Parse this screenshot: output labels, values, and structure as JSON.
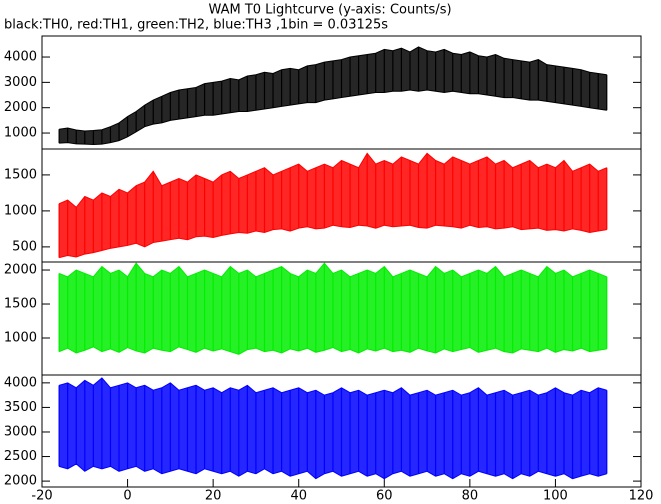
{
  "title": "WAM T0 Lightcurve (y-axis: Counts/s)",
  "subtitle": "black:TH0, red:TH1, green:TH2, blue:TH3 ,1bin = 0.03125s",
  "chart_data": [
    {
      "type": "band",
      "x": [
        -16,
        -14,
        -12,
        -10,
        -8,
        -6,
        -4,
        -2,
        0,
        2,
        4,
        6,
        8,
        10,
        12,
        14,
        16,
        18,
        20,
        22,
        24,
        26,
        28,
        30,
        32,
        34,
        36,
        38,
        40,
        42,
        44,
        46,
        48,
        50,
        52,
        54,
        56,
        58,
        60,
        62,
        64,
        66,
        68,
        70,
        72,
        74,
        76,
        78,
        80,
        82,
        84,
        86,
        88,
        90,
        92,
        94,
        96,
        98,
        100,
        102,
        104,
        106,
        108,
        110,
        112
      ],
      "series": [
        {
          "color": "#000000",
          "values": [
            600,
            620,
            570,
            560,
            550,
            560,
            620,
            700,
            850,
            1050,
            1250,
            1350,
            1400,
            1500,
            1550,
            1600,
            1650,
            1700,
            1700,
            1750,
            1800,
            1850,
            1850,
            1900,
            1950,
            2000,
            2050,
            2100,
            2150,
            2200,
            2200,
            2300,
            2350,
            2400,
            2450,
            2500,
            2550,
            2600,
            2600,
            2650,
            2650,
            2700,
            2650,
            2700,
            2650,
            2600,
            2650,
            2600,
            2550,
            2550,
            2500,
            2450,
            2400,
            2400,
            2350,
            2300,
            2300,
            2250,
            2200,
            2150,
            2100,
            2050,
            2000,
            1950,
            1900
          ]
        },
        {
          "color": "#000000",
          "values": [
            1150,
            1200,
            1120,
            1080,
            1100,
            1130,
            1250,
            1400,
            1650,
            1850,
            2100,
            2300,
            2450,
            2600,
            2700,
            2750,
            2800,
            2950,
            3000,
            3050,
            3150,
            3100,
            3250,
            3300,
            3400,
            3350,
            3500,
            3550,
            3500,
            3650,
            3700,
            3800,
            3850,
            3900,
            4000,
            4050,
            4100,
            4150,
            4300,
            4250,
            4350,
            4200,
            4400,
            4250,
            4200,
            4300,
            4150,
            4100,
            4200,
            4050,
            4000,
            4100,
            3950,
            3900,
            3850,
            3800,
            3900,
            3700,
            3650,
            3600,
            3550,
            3500,
            3400,
            3350,
            3300
          ]
        }
      ],
      "xlim": [
        -20,
        120
      ],
      "ylim": [
        370,
        4830
      ],
      "yticks": [
        1000,
        2000,
        3000,
        4000
      ]
    },
    {
      "type": "band",
      "x": [
        -16,
        -14,
        -12,
        -10,
        -8,
        -6,
        -4,
        -2,
        0,
        2,
        4,
        6,
        8,
        10,
        12,
        14,
        16,
        18,
        20,
        22,
        24,
        26,
        28,
        30,
        32,
        34,
        36,
        38,
        40,
        42,
        44,
        46,
        48,
        50,
        52,
        54,
        56,
        58,
        60,
        62,
        64,
        66,
        68,
        70,
        72,
        74,
        76,
        78,
        80,
        82,
        84,
        86,
        88,
        90,
        92,
        94,
        96,
        98,
        100,
        102,
        104,
        106,
        108,
        110,
        112
      ],
      "series": [
        {
          "color": "#ff0000",
          "values": [
            350,
            380,
            360,
            400,
            420,
            450,
            480,
            500,
            520,
            550,
            500,
            560,
            580,
            600,
            620,
            600,
            640,
            650,
            630,
            660,
            680,
            700,
            690,
            720,
            700,
            740,
            750,
            720,
            760,
            780,
            750,
            760,
            800,
            780,
            770,
            800,
            790,
            760,
            800,
            780,
            790,
            800,
            770,
            760,
            800,
            790,
            780,
            760,
            800,
            770,
            780,
            750,
            760,
            780,
            740,
            750,
            760,
            730,
            740,
            720,
            750,
            730,
            700,
            720,
            740
          ]
        },
        {
          "color": "#ff0000",
          "values": [
            1100,
            1150,
            1050,
            1200,
            1150,
            1250,
            1200,
            1300,
            1250,
            1350,
            1400,
            1550,
            1350,
            1400,
            1450,
            1400,
            1500,
            1450,
            1400,
            1500,
            1550,
            1450,
            1500,
            1550,
            1600,
            1500,
            1550,
            1600,
            1650,
            1550,
            1600,
            1650,
            1600,
            1700,
            1650,
            1600,
            1800,
            1650,
            1700,
            1650,
            1750,
            1700,
            1650,
            1800,
            1700,
            1650,
            1750,
            1700,
            1650,
            1700,
            1750,
            1650,
            1700,
            1600,
            1650,
            1700,
            1600,
            1650,
            1600,
            1700,
            1550,
            1600,
            1650,
            1550,
            1600
          ]
        }
      ],
      "xlim": [
        -20,
        120
      ],
      "ylim": [
        290,
        1860
      ],
      "yticks": [
        500,
        1000,
        1500
      ]
    },
    {
      "type": "band",
      "x": [
        -16,
        -14,
        -12,
        -10,
        -8,
        -6,
        -4,
        -2,
        0,
        2,
        4,
        6,
        8,
        10,
        12,
        14,
        16,
        18,
        20,
        22,
        24,
        26,
        28,
        30,
        32,
        34,
        36,
        38,
        40,
        42,
        44,
        46,
        48,
        50,
        52,
        54,
        56,
        58,
        60,
        62,
        64,
        66,
        68,
        70,
        72,
        74,
        76,
        78,
        80,
        82,
        84,
        86,
        88,
        90,
        92,
        94,
        96,
        98,
        100,
        102,
        104,
        106,
        108,
        110,
        112
      ],
      "series": [
        {
          "color": "#00ee00",
          "values": [
            800,
            850,
            780,
            820,
            870,
            800,
            840,
            790,
            860,
            810,
            780,
            850,
            820,
            800,
            870,
            830,
            790,
            850,
            810,
            840,
            800,
            760,
            830,
            850,
            800,
            820,
            780,
            840,
            810,
            850,
            790,
            820,
            860,
            800,
            830,
            780,
            840,
            810,
            850,
            800,
            820,
            790,
            850,
            810,
            780,
            840,
            800,
            830,
            860,
            790,
            820,
            850,
            800,
            780,
            840,
            820,
            800,
            850,
            790,
            830,
            810,
            850,
            800,
            820,
            840
          ]
        },
        {
          "color": "#00ee00",
          "values": [
            1950,
            1900,
            2000,
            1950,
            1900,
            2050,
            1950,
            2000,
            1900,
            2100,
            1950,
            1900,
            2000,
            1950,
            2050,
            1900,
            1950,
            2000,
            1950,
            1900,
            2050,
            1950,
            2000,
            1900,
            1950,
            2000,
            2050,
            1950,
            1900,
            2000,
            1950,
            2100,
            1950,
            2000,
            1900,
            1950,
            2000,
            1950,
            2050,
            1900,
            1950,
            2000,
            1950,
            1900,
            2050,
            1950,
            2000,
            1900,
            1950,
            2000,
            1950,
            2050,
            1900,
            1950,
            2000,
            1950,
            1900,
            2050,
            1950,
            2000,
            1900,
            1950,
            2000,
            1950,
            1900
          ]
        }
      ],
      "xlim": [
        -20,
        120
      ],
      "ylim": [
        456,
        2118
      ],
      "yticks": [
        1000,
        1500,
        2000
      ]
    },
    {
      "type": "band",
      "x": [
        -16,
        -14,
        -12,
        -10,
        -8,
        -6,
        -4,
        -2,
        0,
        2,
        4,
        6,
        8,
        10,
        12,
        14,
        16,
        18,
        20,
        22,
        24,
        26,
        28,
        30,
        32,
        34,
        36,
        38,
        40,
        42,
        44,
        46,
        48,
        50,
        52,
        54,
        56,
        58,
        60,
        62,
        64,
        66,
        68,
        70,
        72,
        74,
        76,
        78,
        80,
        82,
        84,
        86,
        88,
        90,
        92,
        94,
        96,
        98,
        100,
        102,
        104,
        106,
        108,
        110,
        112
      ],
      "series": [
        {
          "color": "#0000ff",
          "values": [
            2300,
            2250,
            2350,
            2200,
            2300,
            2250,
            2300,
            2200,
            2250,
            2300,
            2200,
            2250,
            2150,
            2200,
            2250,
            2200,
            2150,
            2250,
            2200,
            2150,
            2200,
            2100,
            2200,
            2150,
            2250,
            2150,
            2200,
            2100,
            2150,
            2200,
            2050,
            2150,
            2200,
            2100,
            2150,
            2200,
            2100,
            2150,
            2050,
            2150,
            2200,
            2100,
            2150,
            2200,
            2100,
            2150,
            2050,
            2150,
            2100,
            2200,
            2150,
            2100,
            2150,
            2050,
            2150,
            2100,
            2200,
            2150,
            2100,
            2150,
            2050,
            2100,
            2150,
            2100,
            2150
          ]
        },
        {
          "color": "#0000ff",
          "values": [
            3950,
            4000,
            3900,
            4050,
            3950,
            4100,
            3900,
            3950,
            4000,
            3900,
            3950,
            3850,
            3900,
            4000,
            3850,
            3900,
            3950,
            3850,
            3900,
            3800,
            3900,
            3850,
            3950,
            3800,
            3850,
            3900,
            3800,
            3850,
            3900,
            3800,
            3850,
            3750,
            3800,
            3900,
            3800,
            3850,
            3750,
            3800,
            3850,
            3800,
            3900,
            3750,
            3800,
            3850,
            3750,
            3800,
            3850,
            3750,
            3800,
            3900,
            3750,
            3800,
            3850,
            3750,
            3800,
            3850,
            3750,
            3800,
            3900,
            3800,
            3750,
            3850,
            3800,
            3900,
            3850
          ]
        }
      ],
      "xlim": [
        -20,
        120
      ],
      "ylim": [
        1880,
        4160
      ],
      "yticks": [
        2000,
        2500,
        3000,
        3500,
        4000
      ],
      "xticks": [
        -20,
        0,
        20,
        40,
        60,
        80,
        100,
        120
      ]
    }
  ]
}
